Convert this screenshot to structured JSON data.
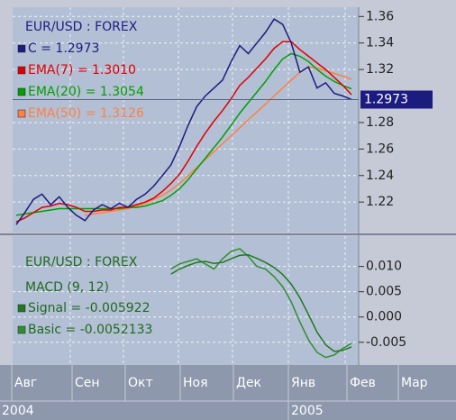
{
  "chart_data": [
    {
      "type": "line",
      "title": "EUR/USD : FOREX",
      "ylim": [
        1.197,
        1.367
      ],
      "yticks": [
        1.22,
        1.24,
        1.26,
        1.28,
        1.32,
        1.34,
        1.36
      ],
      "series": [
        {
          "name": "C = 1.2973",
          "color": "#1c1c80",
          "values": [
            1.203,
            1.212,
            1.222,
            1.226,
            1.218,
            1.224,
            1.216,
            1.21,
            1.206,
            1.214,
            1.218,
            1.215,
            1.219,
            1.216,
            1.222,
            1.226,
            1.232,
            1.24,
            1.248,
            1.262,
            1.278,
            1.292,
            1.3,
            1.306,
            1.312,
            1.326,
            1.338,
            1.332,
            1.34,
            1.348,
            1.358,
            1.354,
            1.34,
            1.318,
            1.322,
            1.306,
            1.31,
            1.302,
            1.3,
            1.2973
          ]
        },
        {
          "name": "EMA(7) = 1.3010",
          "color": "#e00000",
          "values": [
            1.205,
            1.208,
            1.212,
            1.216,
            1.217,
            1.219,
            1.218,
            1.216,
            1.213,
            1.213,
            1.214,
            1.214,
            1.216,
            1.216,
            1.218,
            1.22,
            1.223,
            1.228,
            1.234,
            1.241,
            1.251,
            1.262,
            1.272,
            1.281,
            1.289,
            1.298,
            1.308,
            1.314,
            1.321,
            1.328,
            1.336,
            1.341,
            1.341,
            1.335,
            1.33,
            1.325,
            1.32,
            1.314,
            1.308,
            1.301
          ]
        },
        {
          "name": "EMA(20) = 1.3054",
          "color": "#00a000",
          "values": [
            1.21,
            1.211,
            1.212,
            1.213,
            1.214,
            1.215,
            1.215,
            1.215,
            1.215,
            1.215,
            1.215,
            1.215,
            1.215,
            1.216,
            1.216,
            1.217,
            1.219,
            1.221,
            1.225,
            1.23,
            1.237,
            1.245,
            1.253,
            1.261,
            1.269,
            1.278,
            1.287,
            1.295,
            1.303,
            1.311,
            1.32,
            1.328,
            1.332,
            1.33,
            1.326,
            1.32,
            1.315,
            1.311,
            1.308,
            1.3054
          ]
        },
        {
          "name": "EMA(50) = 1.3126",
          "color": "#ff8040",
          "values": [
            null,
            null,
            null,
            null,
            null,
            null,
            null,
            null,
            1.21,
            1.211,
            1.212,
            1.213,
            1.214,
            1.215,
            1.217,
            1.219,
            1.222,
            1.225,
            1.229,
            1.234,
            1.24,
            1.246,
            1.252,
            1.258,
            1.264,
            1.27,
            1.276,
            1.282,
            1.288,
            1.294,
            1.3,
            1.306,
            1.312,
            1.318,
            1.322,
            1.321,
            1.319,
            1.317,
            1.315,
            1.3126
          ]
        }
      ]
    },
    {
      "type": "line",
      "title": "EUR/USD : FOREX",
      "subtitle": "MACD (9, 12)",
      "ylim": [
        -0.0095,
        0.016
      ],
      "yticks": [
        {
          "value": 0.01,
          "label": "0.010"
        },
        0.005,
        {
          "value": 0,
          "label": "0.000"
        },
        -0.005
      ],
      "series": [
        {
          "name": "Signal = -0.005922",
          "color": "#1f7a1f",
          "values": [
            null,
            null,
            null,
            null,
            null,
            null,
            null,
            null,
            null,
            null,
            null,
            null,
            null,
            null,
            null,
            null,
            null,
            null,
            0.0085,
            0.0095,
            0.0102,
            0.0108,
            0.011,
            0.0106,
            0.0108,
            0.0115,
            0.0122,
            0.0123,
            0.0116,
            0.0108,
            0.0098,
            0.0084,
            0.0065,
            0.0038,
            0.0005,
            -0.003,
            -0.0055,
            -0.0068,
            -0.0066,
            -0.005922
          ]
        },
        {
          "name": "Basic = -0.0052133",
          "color": "#2f8f2f",
          "values": [
            null,
            null,
            null,
            null,
            null,
            null,
            null,
            null,
            null,
            null,
            null,
            null,
            null,
            null,
            null,
            null,
            null,
            null,
            0.0095,
            0.0105,
            0.011,
            0.0115,
            0.0105,
            0.0095,
            0.0115,
            0.013,
            0.0135,
            0.012,
            0.01,
            0.0095,
            0.008,
            0.006,
            0.003,
            -0.001,
            -0.0045,
            -0.007,
            -0.008,
            -0.0075,
            -0.0062,
            -0.0052133
          ]
        }
      ]
    }
  ],
  "time_axis": {
    "months": [
      "Авг",
      "Сен",
      "Окт",
      "Ноя",
      "Дек",
      "Янв",
      "Фев",
      "Мар"
    ],
    "years": [
      "2004",
      "2005"
    ]
  }
}
